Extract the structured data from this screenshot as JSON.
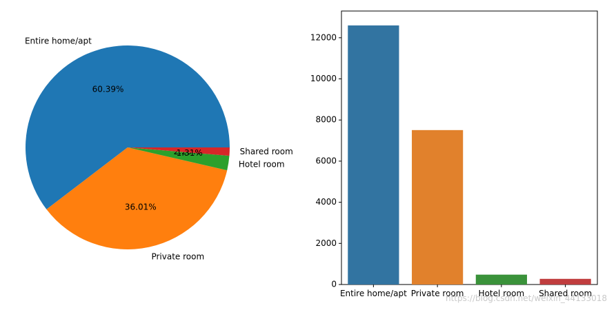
{
  "chart_data": [
    {
      "type": "pie",
      "categories": [
        "Entire home/apt",
        "Private room",
        "Hotel room",
        "Shared room"
      ],
      "values": [
        60.39,
        36.01,
        2.29,
        1.31
      ],
      "value_labels": [
        "60.39%",
        "36.01%",
        "2.29%",
        "1.31%"
      ],
      "colors": [
        "#1f77b4",
        "#ff7f0e",
        "#2ca02c",
        "#d62728"
      ]
    },
    {
      "type": "bar",
      "categories": [
        "Entire home/apt",
        "Private room",
        "Hotel room",
        "Shared room"
      ],
      "values": [
        12600,
        7510,
        480,
        275
      ],
      "colors": [
        "#3274a1",
        "#e1812c",
        "#3a923a",
        "#c03d3e"
      ],
      "ylim": [
        0,
        13300
      ],
      "yticks": [
        0,
        2000,
        4000,
        6000,
        8000,
        10000,
        12000
      ],
      "grid": false
    }
  ],
  "watermark": "https://blog.csdn.net/weixin_44133018"
}
